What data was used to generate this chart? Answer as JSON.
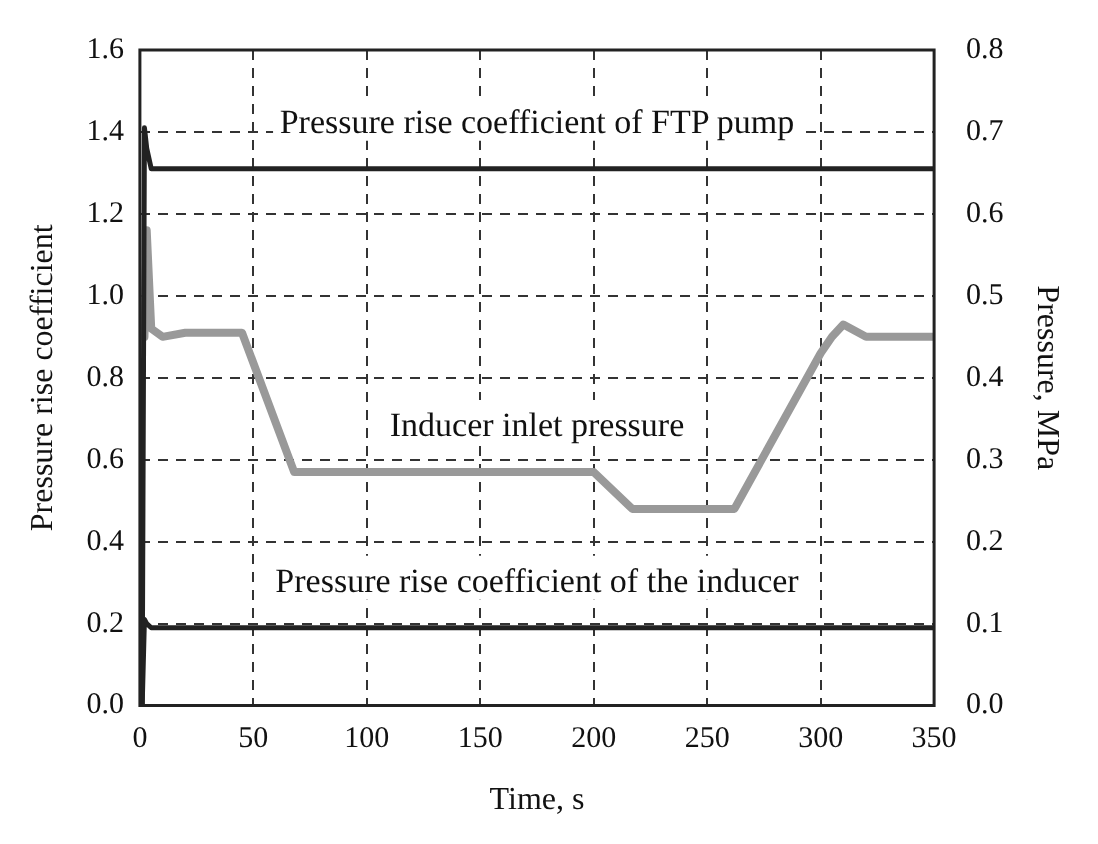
{
  "chart_data": {
    "type": "line",
    "xlabel": "Time, s",
    "ylabel": "Pressure rise coefficient",
    "y2label": "Pressure, MPa",
    "xlim": [
      0,
      350
    ],
    "xticks": [
      0,
      50,
      100,
      150,
      200,
      250,
      300,
      350
    ],
    "ylim": [
      0,
      1.6
    ],
    "yticks": [
      {
        "value": 0,
        "label": "0.0"
      },
      0.2,
      0.4,
      0.6,
      0.8,
      {
        "value": 1,
        "label": "1.0"
      },
      1.2,
      1.4,
      1.6
    ],
    "y2lim": [
      0,
      0.8
    ],
    "y2ticks": [
      {
        "value": 0,
        "label": "0.0"
      },
      0.1,
      0.2,
      0.3,
      0.4,
      0.5,
      0.6,
      0.7,
      0.8
    ],
    "grid": true,
    "legend": false,
    "marker": "none",
    "line_style": "solid",
    "series": [
      {
        "name": "Pressure rise coefficient of FTP pump",
        "color": "#222222",
        "x": [
          1,
          2,
          3,
          5,
          50,
          100,
          150,
          200,
          250,
          300,
          350
        ],
        "values": [
          0,
          1.41,
          1.36,
          1.31,
          1.31,
          1.31,
          1.31,
          1.31,
          1.31,
          1.31,
          1.31
        ]
      },
      {
        "name": "Inducer inlet pressure",
        "color": "#999999",
        "axis": "y2",
        "x": [
          2,
          3,
          5,
          10,
          20,
          30,
          40,
          45,
          68,
          100,
          150,
          200,
          217,
          250,
          262,
          300,
          305,
          310,
          320,
          350
        ],
        "values": [
          0.45,
          0.58,
          0.46,
          0.45,
          0.455,
          0.455,
          0.455,
          0.455,
          0.285,
          0.285,
          0.285,
          0.285,
          0.24,
          0.24,
          0.24,
          0.43,
          0.45,
          0.465,
          0.45,
          0.45
        ]
      },
      {
        "name": "Pressure rise coefficient of the inducer",
        "color": "#222222",
        "x": [
          1,
          2,
          3,
          5,
          50,
          100,
          150,
          200,
          250,
          300,
          350
        ],
        "values": [
          0,
          0.21,
          0.2,
          0.19,
          0.19,
          0.19,
          0.19,
          0.19,
          0.19,
          0.19,
          0.19
        ]
      }
    ]
  }
}
